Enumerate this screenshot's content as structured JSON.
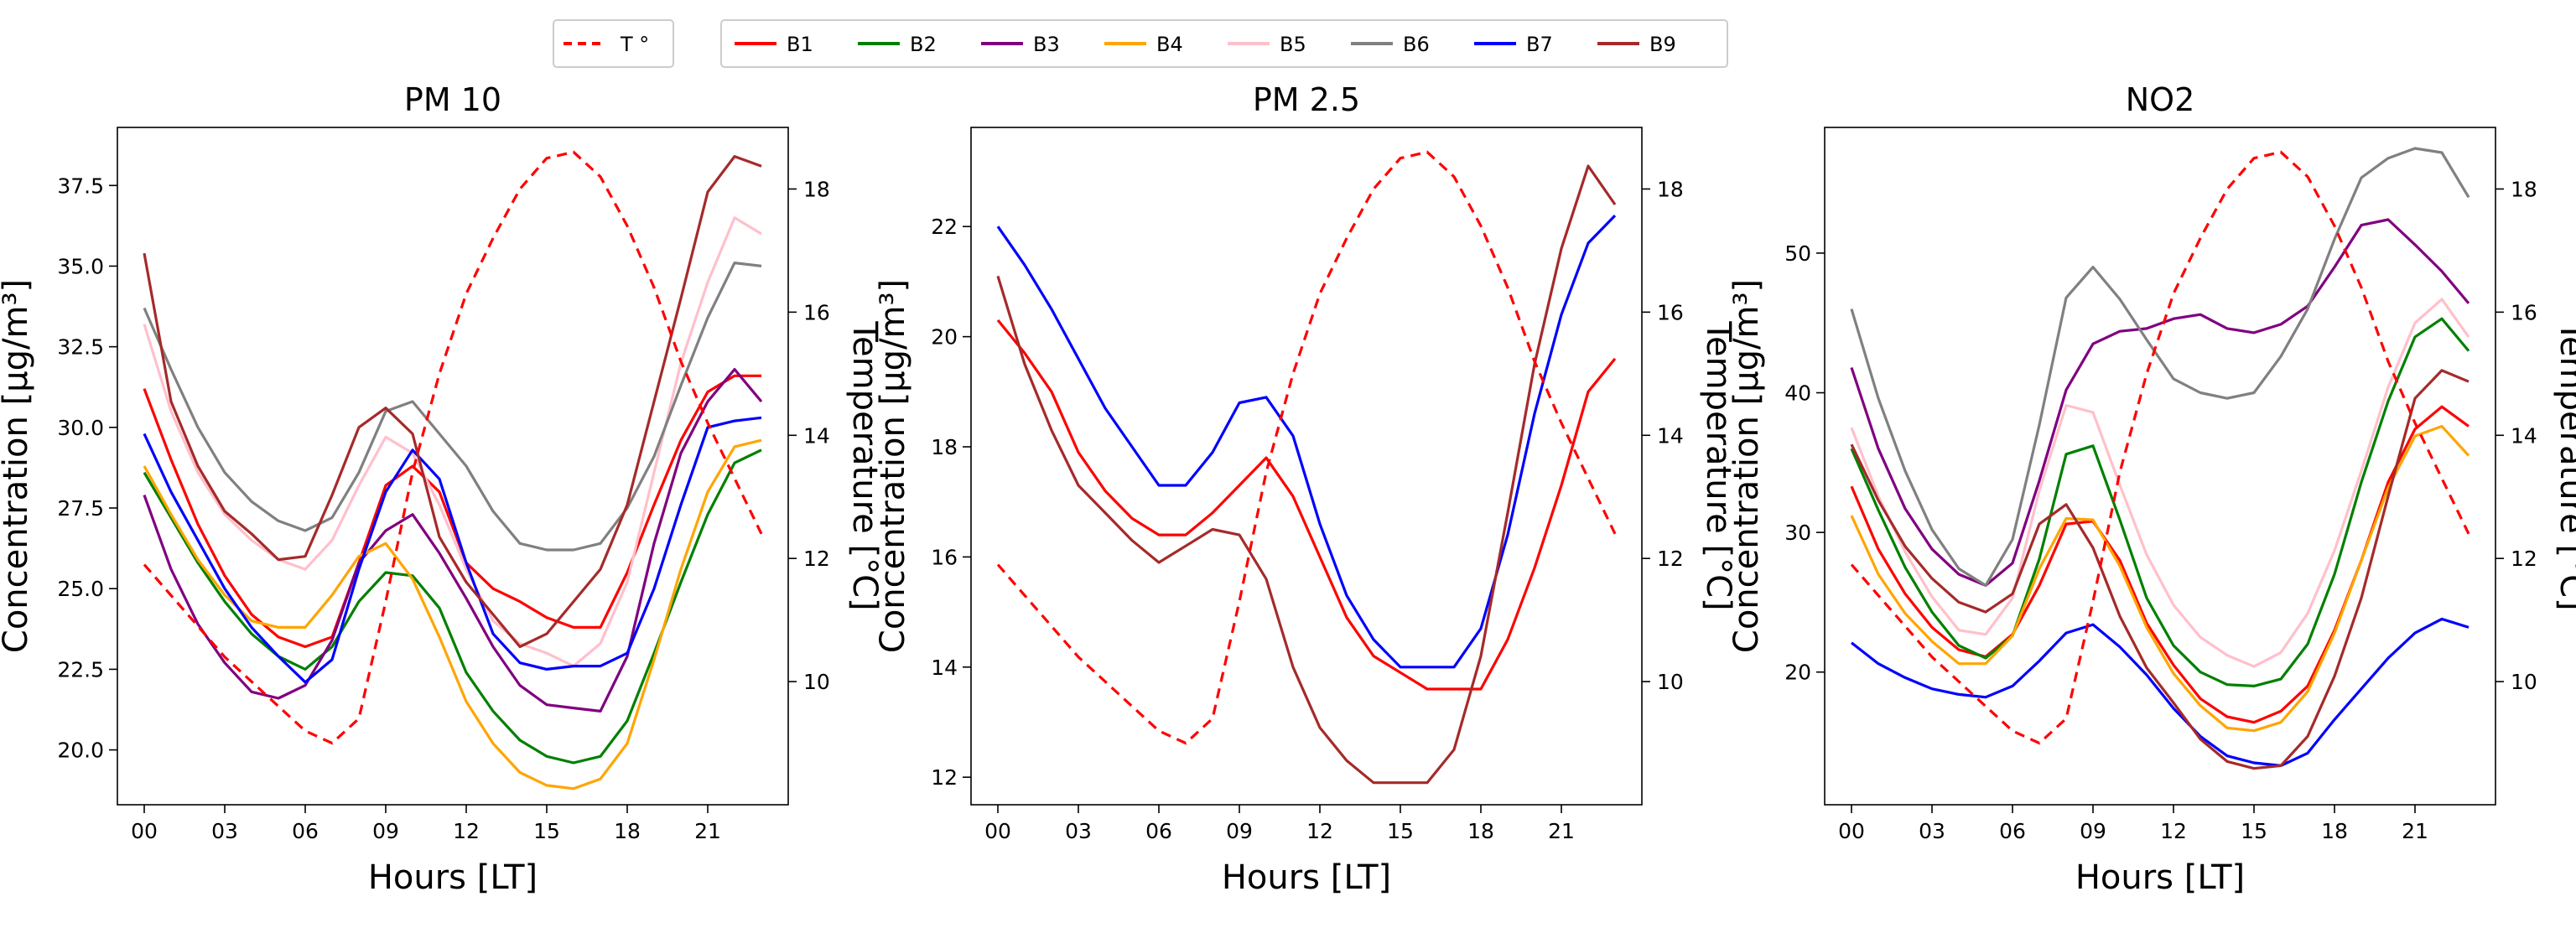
{
  "legend": {
    "temperature": {
      "label": "T °",
      "color": "#ff0000",
      "dashed": true
    },
    "series": [
      {
        "label": "B1",
        "color": "#ff0000"
      },
      {
        "label": "B2",
        "color": "#008000"
      },
      {
        "label": "B3",
        "color": "#800080"
      },
      {
        "label": "B4",
        "color": "#ffa500"
      },
      {
        "label": "B5",
        "color": "#ffc0cb"
      },
      {
        "label": "B6",
        "color": "#808080"
      },
      {
        "label": "B7",
        "color": "#0000ff"
      },
      {
        "label": "B9",
        "color": "#a52a2a"
      }
    ]
  },
  "chart_data": [
    {
      "type": "line",
      "title": "PM 10",
      "xlabel": "Hours [LT]",
      "ylabel": "Concentration [µg/m³]",
      "y2label": "Temperature [°C]",
      "xlim": [
        -1,
        24
      ],
      "ylim": [
        18.3,
        39.3
      ],
      "y2lim": [
        8.0,
        19.0
      ],
      "x_ticks": [
        0,
        3,
        6,
        9,
        12,
        15,
        18,
        21
      ],
      "x_tick_labels": [
        "00",
        "03",
        "06",
        "09",
        "12",
        "15",
        "18",
        "21"
      ],
      "y_ticks": [
        20.0,
        22.5,
        25.0,
        27.5,
        30.0,
        32.5,
        35.0,
        37.5
      ],
      "y_tick_labels": [
        "20.0",
        "22.5",
        "25.0",
        "27.5",
        "30.0",
        "32.5",
        "35.0",
        "37.5"
      ],
      "y2_ticks": [
        10,
        12,
        14,
        16,
        18
      ],
      "y2_tick_labels": [
        "10",
        "12",
        "14",
        "16",
        "18"
      ],
      "x": [
        0,
        1,
        2,
        3,
        4,
        5,
        6,
        7,
        8,
        9,
        10,
        11,
        12,
        13,
        14,
        15,
        16,
        17,
        18,
        19,
        20,
        21,
        22,
        23
      ],
      "temperature": [
        11.9,
        11.4,
        10.9,
        10.4,
        10.0,
        9.6,
        9.2,
        9.0,
        9.4,
        11.3,
        13.4,
        15.0,
        16.3,
        17.2,
        18.0,
        18.5,
        18.6,
        18.2,
        17.4,
        16.4,
        15.2,
        14.2,
        13.3,
        12.4
      ],
      "series": [
        {
          "name": "B1",
          "values": [
            31.2,
            29.0,
            27.0,
            25.4,
            24.2,
            23.5,
            23.2,
            23.5,
            25.8,
            28.2,
            28.8,
            28.0,
            25.8,
            25.0,
            24.6,
            24.1,
            23.8,
            23.8,
            25.5,
            27.6,
            29.6,
            31.1,
            31.6,
            31.6
          ]
        },
        {
          "name": "B2",
          "values": [
            28.6,
            27.2,
            25.8,
            24.6,
            23.6,
            22.9,
            22.5,
            23.2,
            24.6,
            25.5,
            25.4,
            24.4,
            22.4,
            21.2,
            20.3,
            19.8,
            19.6,
            19.8,
            20.9,
            23.0,
            25.2,
            27.3,
            28.9,
            29.3
          ]
        },
        {
          "name": "B3",
          "values": [
            27.9,
            25.6,
            23.9,
            22.7,
            21.8,
            21.6,
            22.0,
            23.4,
            25.8,
            26.8,
            27.3,
            26.1,
            24.7,
            23.2,
            22.0,
            21.4,
            21.3,
            21.2,
            22.9,
            26.4,
            29.2,
            30.8,
            31.8,
            30.8
          ]
        },
        {
          "name": "B4",
          "values": [
            28.8,
            27.3,
            25.9,
            24.8,
            24.0,
            23.8,
            23.8,
            24.8,
            26.0,
            26.4,
            25.3,
            23.5,
            21.5,
            20.2,
            19.3,
            18.9,
            18.8,
            19.1,
            20.2,
            22.8,
            25.6,
            28.0,
            29.4,
            29.6
          ]
        },
        {
          "name": "B5",
          "values": [
            33.2,
            30.5,
            28.6,
            27.3,
            26.5,
            25.9,
            25.6,
            26.5,
            28.2,
            29.7,
            29.2,
            27.6,
            25.6,
            24.0,
            23.3,
            23.0,
            22.6,
            23.3,
            25.2,
            28.6,
            32.0,
            34.5,
            36.5,
            36.0
          ]
        },
        {
          "name": "B6",
          "values": [
            33.7,
            31.8,
            30.0,
            28.6,
            27.7,
            27.1,
            26.8,
            27.2,
            28.6,
            30.5,
            30.8,
            29.8,
            28.8,
            27.4,
            26.4,
            26.2,
            26.2,
            26.4,
            27.5,
            29.1,
            31.3,
            33.4,
            35.1,
            35.0
          ]
        },
        {
          "name": "B7",
          "values": [
            29.8,
            28.0,
            26.5,
            25.0,
            23.8,
            22.9,
            22.1,
            22.8,
            25.6,
            28.0,
            29.3,
            28.4,
            25.8,
            23.6,
            22.7,
            22.5,
            22.6,
            22.6,
            23.0,
            25.0,
            27.6,
            30.0,
            30.2,
            30.3
          ]
        },
        {
          "name": "B9",
          "values": [
            35.4,
            30.8,
            28.8,
            27.4,
            26.7,
            25.9,
            26.0,
            27.9,
            30.0,
            30.6,
            29.8,
            26.6,
            25.2,
            24.2,
            23.2,
            23.6,
            24.6,
            25.6,
            27.6,
            30.8,
            34.0,
            37.3,
            38.4,
            38.1
          ]
        }
      ]
    },
    {
      "type": "line",
      "title": "PM 2.5",
      "xlabel": "Hours [LT]",
      "ylabel": "Concentration [µg/m³]",
      "y2label": "Temperature [°C]",
      "xlim": [
        -1,
        24
      ],
      "ylim": [
        11.5,
        23.8
      ],
      "y2lim": [
        8.0,
        19.0
      ],
      "x_ticks": [
        0,
        3,
        6,
        9,
        12,
        15,
        18,
        21
      ],
      "x_tick_labels": [
        "00",
        "03",
        "06",
        "09",
        "12",
        "15",
        "18",
        "21"
      ],
      "y_ticks": [
        12,
        14,
        16,
        18,
        20,
        22
      ],
      "y_tick_labels": [
        "12",
        "14",
        "16",
        "18",
        "20",
        "22"
      ],
      "y2_ticks": [
        10,
        12,
        14,
        16,
        18
      ],
      "y2_tick_labels": [
        "10",
        "12",
        "14",
        "16",
        "18"
      ],
      "x": [
        0,
        1,
        2,
        3,
        4,
        5,
        6,
        7,
        8,
        9,
        10,
        11,
        12,
        13,
        14,
        15,
        16,
        17,
        18,
        19,
        20,
        21,
        22,
        23
      ],
      "temperature": [
        11.9,
        11.4,
        10.9,
        10.4,
        10.0,
        9.6,
        9.2,
        9.0,
        9.4,
        11.3,
        13.4,
        15.0,
        16.3,
        17.2,
        18.0,
        18.5,
        18.6,
        18.2,
        17.4,
        16.4,
        15.2,
        14.2,
        13.3,
        12.4
      ],
      "series": [
        {
          "name": "B1",
          "values": [
            20.3,
            19.7,
            19.0,
            17.9,
            17.2,
            16.7,
            16.4,
            16.4,
            16.8,
            17.3,
            17.8,
            17.1,
            16.0,
            14.9,
            14.2,
            13.9,
            13.6,
            13.6,
            13.6,
            14.5,
            15.8,
            17.3,
            19.0,
            19.6
          ]
        },
        {
          "name": "B7",
          "values": [
            22.0,
            21.3,
            20.5,
            19.6,
            18.7,
            18.0,
            17.3,
            17.3,
            17.9,
            18.8,
            18.9,
            18.2,
            16.6,
            15.3,
            14.5,
            14.0,
            14.0,
            14.0,
            14.7,
            16.4,
            18.6,
            20.4,
            21.7,
            22.2
          ]
        },
        {
          "name": "B9",
          "values": [
            21.1,
            19.5,
            18.3,
            17.3,
            16.8,
            16.3,
            15.9,
            16.2,
            16.5,
            16.4,
            15.6,
            14.0,
            12.9,
            12.3,
            11.9,
            11.9,
            11.9,
            12.5,
            14.2,
            16.8,
            19.5,
            21.6,
            23.1,
            22.4
          ]
        }
      ]
    },
    {
      "type": "line",
      "title": "NO2",
      "xlabel": "Hours [LT]",
      "ylabel": "Concentration [µg/m³]",
      "y2label": "Temperature [°C]",
      "xlim": [
        -1,
        24
      ],
      "ylim": [
        10.5,
        59.0
      ],
      "y2lim": [
        8.0,
        19.0
      ],
      "x_ticks": [
        0,
        3,
        6,
        9,
        12,
        15,
        18,
        21
      ],
      "x_tick_labels": [
        "00",
        "03",
        "06",
        "09",
        "12",
        "15",
        "18",
        "21"
      ],
      "y_ticks": [
        20,
        30,
        40,
        50
      ],
      "y_tick_labels": [
        "20",
        "30",
        "40",
        "50"
      ],
      "y2_ticks": [
        10,
        12,
        14,
        16,
        18
      ],
      "y2_tick_labels": [
        "10",
        "12",
        "14",
        "16",
        "18"
      ],
      "x": [
        0,
        1,
        2,
        3,
        4,
        5,
        6,
        7,
        8,
        9,
        10,
        11,
        12,
        13,
        14,
        15,
        16,
        17,
        18,
        19,
        20,
        21,
        22,
        23
      ],
      "temperature": [
        11.9,
        11.4,
        10.9,
        10.4,
        10.0,
        9.6,
        9.2,
        9.0,
        9.4,
        11.3,
        13.4,
        15.0,
        16.3,
        17.2,
        18.0,
        18.5,
        18.6,
        18.2,
        17.4,
        16.4,
        15.2,
        14.2,
        13.3,
        12.4
      ],
      "series": [
        {
          "name": "B1",
          "values": [
            33.3,
            28.8,
            25.6,
            23.2,
            21.6,
            21.1,
            22.7,
            26.2,
            30.6,
            30.8,
            28.0,
            23.5,
            20.5,
            18.1,
            16.8,
            16.4,
            17.2,
            19.0,
            23.0,
            28.0,
            33.6,
            37.4,
            39.0,
            37.6
          ]
        },
        {
          "name": "B2",
          "values": [
            36.0,
            31.6,
            27.5,
            24.3,
            21.9,
            21.0,
            22.6,
            28.1,
            35.6,
            36.2,
            30.9,
            25.3,
            21.9,
            20.0,
            19.1,
            19.0,
            19.5,
            22.0,
            27.0,
            33.6,
            39.4,
            44.0,
            45.3,
            43.0
          ]
        },
        {
          "name": "B3",
          "values": [
            41.8,
            36.0,
            31.7,
            28.8,
            27.0,
            26.2,
            27.8,
            33.7,
            40.2,
            43.5,
            44.4,
            44.6,
            45.3,
            45.6,
            44.6,
            44.3,
            44.9,
            46.2,
            49.0,
            52.0,
            52.4,
            50.6,
            48.7,
            46.4
          ]
        },
        {
          "name": "B4",
          "values": [
            31.2,
            27.0,
            24.2,
            22.2,
            20.6,
            20.6,
            22.6,
            27.4,
            31.0,
            30.9,
            27.6,
            23.2,
            19.9,
            17.6,
            16.0,
            15.8,
            16.4,
            18.6,
            22.8,
            28.0,
            33.2,
            36.9,
            37.6,
            35.5
          ]
        },
        {
          "name": "B5",
          "values": [
            37.5,
            32.6,
            28.6,
            25.4,
            23.0,
            22.7,
            25.3,
            33.0,
            39.1,
            38.6,
            33.4,
            28.4,
            24.8,
            22.5,
            21.2,
            20.4,
            21.4,
            24.2,
            28.7,
            34.4,
            40.4,
            45.0,
            46.7,
            44.0
          ]
        },
        {
          "name": "B6",
          "values": [
            46.0,
            39.6,
            34.4,
            30.2,
            27.4,
            26.2,
            29.5,
            37.7,
            46.8,
            49.0,
            46.7,
            43.8,
            41.0,
            40.0,
            39.6,
            40.0,
            42.6,
            46.0,
            51.0,
            55.4,
            56.8,
            57.5,
            57.2,
            54.0
          ]
        },
        {
          "name": "B7",
          "values": [
            22.1,
            20.6,
            19.6,
            18.8,
            18.4,
            18.2,
            19.0,
            20.8,
            22.8,
            23.4,
            21.8,
            19.8,
            17.4,
            15.4,
            14.0,
            13.5,
            13.3,
            14.2,
            16.6,
            18.8,
            21.0,
            22.8,
            23.8,
            23.2
          ]
        },
        {
          "name": "B9",
          "values": [
            36.3,
            32.3,
            29.0,
            26.7,
            25.0,
            24.3,
            25.6,
            30.6,
            32.0,
            28.9,
            24.0,
            20.3,
            17.8,
            15.2,
            13.6,
            13.1,
            13.3,
            15.4,
            19.7,
            25.3,
            32.6,
            39.6,
            41.6,
            40.8
          ]
        }
      ]
    }
  ]
}
